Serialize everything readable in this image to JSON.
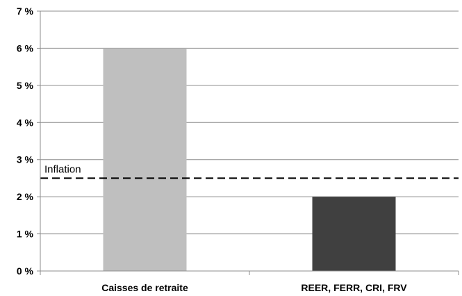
{
  "chart_data": {
    "type": "bar",
    "title": "",
    "xlabel": "",
    "ylabel": "",
    "categories": [
      "Caisses de retraite",
      "REER, FERR, CRI, FRV"
    ],
    "values": [
      6,
      2
    ],
    "bar_colors": [
      "#bfbfbf",
      "#404040"
    ],
    "ylim": [
      0,
      7
    ],
    "yticks": [
      0,
      1,
      2,
      3,
      4,
      5,
      6,
      7
    ],
    "ytick_labels": [
      "0 %",
      "1 %",
      "2 %",
      "3 %",
      "4 %",
      "5 %",
      "6 %",
      "7 %"
    ],
    "grid": "horizontal",
    "grid_color": "#8c8c8c",
    "legend": "none",
    "reference_line": {
      "label": "Inflation",
      "value": 2.5,
      "style": "dashed",
      "color": "#000000"
    }
  }
}
